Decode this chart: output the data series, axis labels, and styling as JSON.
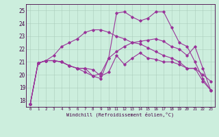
{
  "xlabel": "Windchill (Refroidissement éolien,°C)",
  "background_color": "#cceedd",
  "line_color": "#993399",
  "xlim": [
    -0.5,
    23.5
  ],
  "ylim": [
    17.5,
    25.5
  ],
  "xticks": [
    0,
    1,
    2,
    3,
    4,
    5,
    6,
    7,
    8,
    9,
    10,
    11,
    12,
    13,
    14,
    15,
    16,
    17,
    18,
    19,
    20,
    21,
    22,
    23
  ],
  "yticks": [
    18,
    19,
    20,
    21,
    22,
    23,
    24,
    25
  ],
  "line1_x": [
    0,
    1,
    2,
    3,
    4,
    5,
    6,
    7,
    8,
    9,
    10,
    11,
    12,
    13,
    14,
    15,
    16,
    17,
    18,
    19,
    20,
    21,
    22,
    23
  ],
  "line1_y": [
    17.7,
    20.9,
    21.1,
    21.1,
    21.0,
    20.7,
    20.5,
    20.5,
    20.4,
    19.9,
    20.2,
    21.5,
    20.8,
    21.3,
    21.7,
    21.3,
    21.2,
    21.0,
    21.0,
    20.8,
    20.5,
    20.5,
    19.5,
    18.8
  ],
  "line2_x": [
    0,
    1,
    2,
    3,
    4,
    5,
    6,
    7,
    8,
    9,
    10,
    11,
    12,
    13,
    14,
    15,
    16,
    17,
    18,
    19,
    20,
    21,
    22,
    23
  ],
  "line2_y": [
    17.7,
    20.9,
    21.1,
    21.1,
    21.0,
    20.7,
    20.5,
    20.2,
    19.9,
    19.7,
    21.3,
    24.8,
    24.9,
    24.5,
    24.2,
    24.4,
    24.9,
    24.9,
    23.7,
    22.5,
    22.2,
    21.0,
    19.7,
    18.8
  ],
  "line3_x": [
    0,
    1,
    2,
    3,
    4,
    5,
    6,
    7,
    8,
    9,
    10,
    11,
    12,
    13,
    14,
    15,
    16,
    17,
    18,
    19,
    20,
    21,
    22,
    23
  ],
  "line3_y": [
    17.7,
    20.9,
    21.1,
    21.1,
    21.0,
    20.7,
    20.5,
    20.5,
    19.9,
    20.1,
    21.3,
    21.8,
    22.2,
    22.5,
    22.6,
    22.7,
    22.8,
    22.6,
    22.2,
    22.0,
    21.5,
    22.2,
    20.5,
    18.8
  ],
  "line4_x": [
    0,
    1,
    2,
    3,
    4,
    5,
    6,
    7,
    8,
    9,
    10,
    11,
    12,
    13,
    14,
    15,
    16,
    17,
    18,
    19,
    20,
    21,
    22,
    23
  ],
  "line4_y": [
    17.7,
    20.9,
    21.1,
    21.5,
    22.2,
    22.5,
    22.8,
    23.3,
    23.5,
    23.5,
    23.3,
    23.0,
    22.8,
    22.5,
    22.4,
    22.1,
    21.8,
    21.5,
    21.3,
    21.0,
    20.5,
    20.5,
    20.0,
    19.5
  ]
}
